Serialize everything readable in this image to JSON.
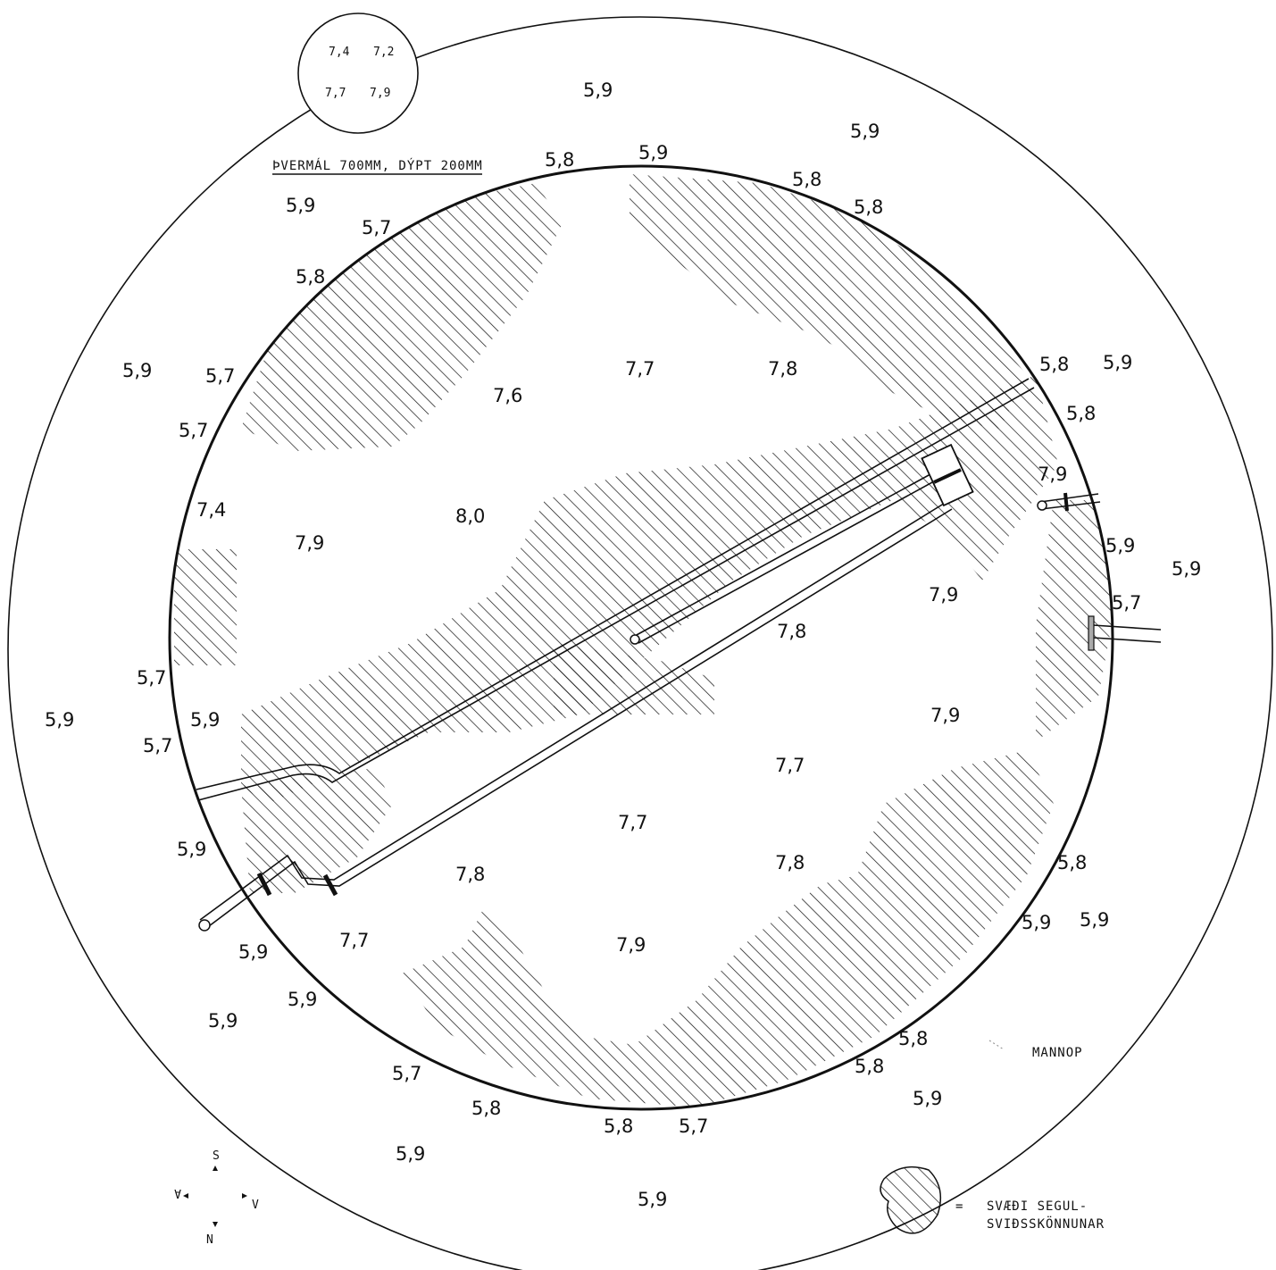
{
  "drawing": {
    "inset_note": "ÞVERMÁL 700MM, DÝPT 200MM",
    "inset_values": [
      "7,4",
      "7,2",
      "7,7",
      "7,9"
    ],
    "outer_values": [
      "5,9",
      "5,9",
      "5,9",
      "5,9",
      "5,9",
      "5,9",
      "5,9",
      "5,9",
      "5,9",
      "5,9",
      "5,9",
      "5,9",
      "5,9",
      "5,9",
      "5,9",
      "5,9"
    ],
    "rim_values": [
      "5,8",
      "5,9",
      "5,8",
      "5,8",
      "5,7",
      "5,8",
      "5,7",
      "5,7",
      "5,8",
      "5,8",
      "7,9",
      "5,7",
      "5,7",
      "5,7",
      "5,9",
      "5,8",
      "5,9",
      "5,8",
      "5,8",
      "5,7",
      "5,8",
      "5,8",
      "5,7"
    ],
    "inner_values": [
      "7,7",
      "7,8",
      "7,6",
      "8,0",
      "7,4",
      "7,9",
      "7,9",
      "7,8",
      "7,9",
      "7,9",
      "7,7",
      "7,7",
      "7,8",
      "7,8",
      "7,7",
      "7,9"
    ],
    "manhole_label": "MANNOP",
    "legend_equals": "=",
    "legend_line1": "SVÆÐI SEGUL-",
    "legend_line2": "SVIÐSSKÖNNUNAR",
    "compass": {
      "s": "S",
      "n": "N",
      "v": "V",
      "a": "A"
    }
  }
}
